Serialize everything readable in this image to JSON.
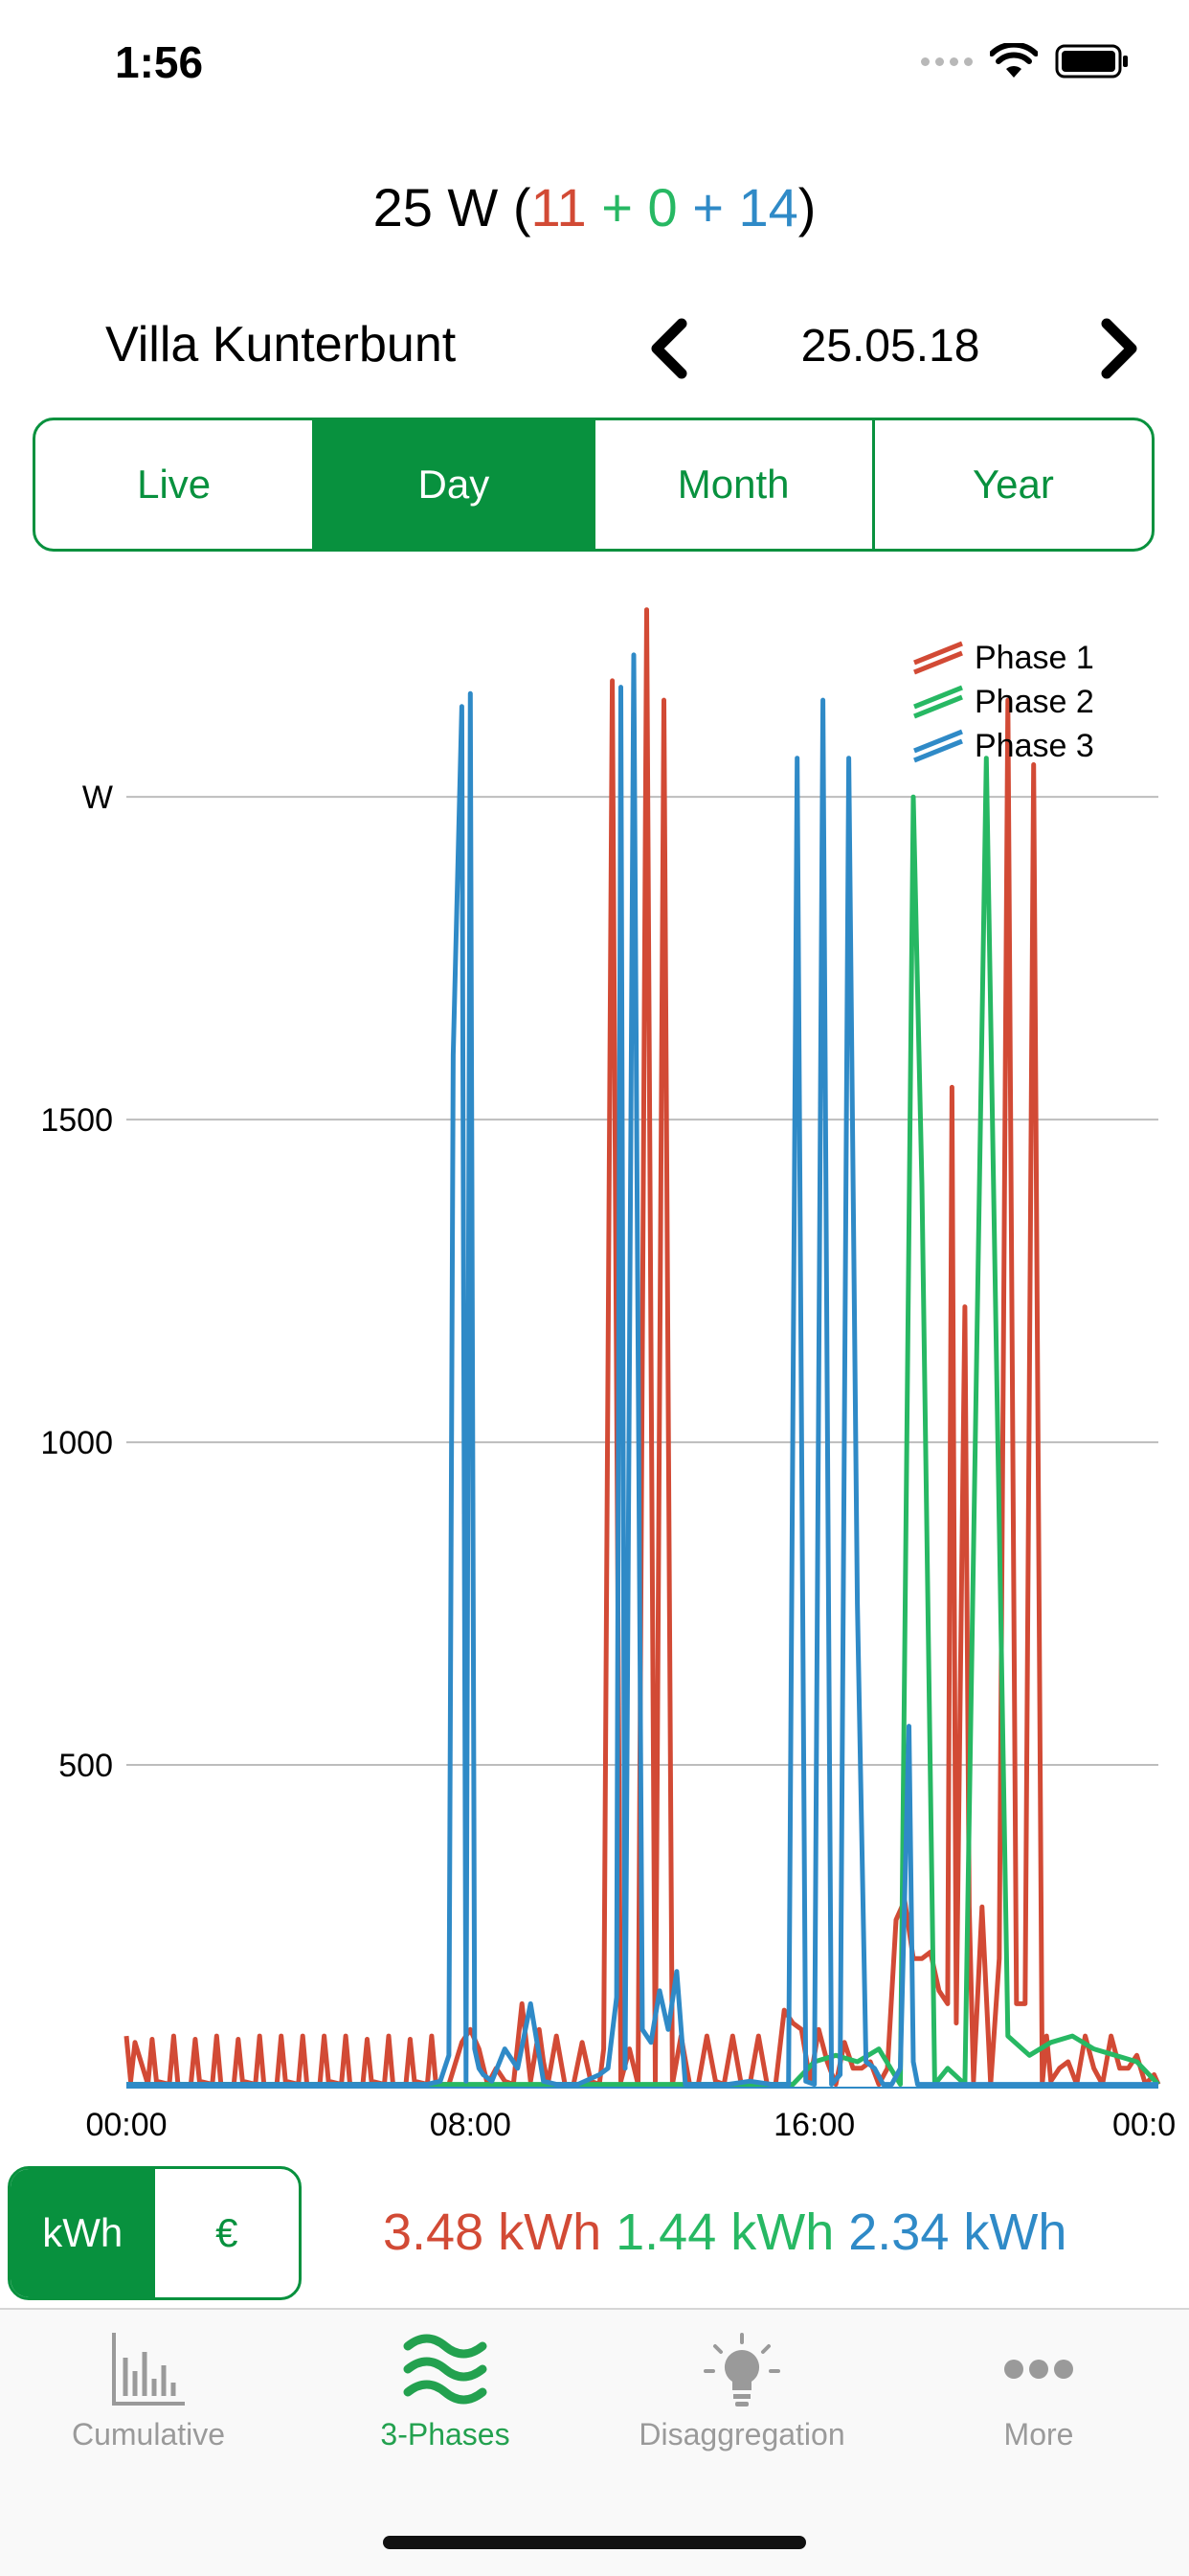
{
  "status_bar": {
    "time": "1:56"
  },
  "power": {
    "total": "25 W",
    "phase1": "11",
    "phase2": "0",
    "phase3": "14",
    "plus": "+",
    "open_paren": "(",
    "close_paren": ")"
  },
  "header": {
    "location": "Villa Kunterbunt",
    "date": "25.05.18"
  },
  "range_tabs": [
    {
      "label": "Live",
      "active": false
    },
    {
      "label": "Day",
      "active": true
    },
    {
      "label": "Month",
      "active": false
    },
    {
      "label": "Year",
      "active": false
    }
  ],
  "unit_toggle": [
    {
      "label": "kWh",
      "active": true
    },
    {
      "label": "€",
      "active": false
    }
  ],
  "totals": {
    "phase1": "3.48 kWh",
    "phase2": "1.44 kWh",
    "phase3": "2.34 kWh"
  },
  "chart_data": {
    "type": "line",
    "ylabel": "W",
    "ylim": [
      0,
      2300
    ],
    "yticks": [
      500,
      1000,
      1500
    ],
    "ytick_labels": [
      "500",
      "1000",
      "1500"
    ],
    "xlim": [
      0,
      24
    ],
    "xticks": [
      0,
      8,
      16,
      24
    ],
    "xtick_labels": [
      "00:00",
      "08:00",
      "16:00",
      "00:0"
    ],
    "legend_position": "top-right",
    "grid": true,
    "colors": {
      "phase1": "#d24a35",
      "phase2": "#27b863",
      "phase3": "#2f8ac7"
    },
    "series": [
      {
        "name": "Phase 1",
        "color": "#d24a35",
        "x": [
          0,
          0.1,
          0.2,
          0.5,
          0.6,
          0.7,
          1.0,
          1.1,
          1.2,
          1.5,
          1.6,
          1.7,
          2.0,
          2.1,
          2.2,
          2.5,
          2.6,
          2.7,
          3.0,
          3.1,
          3.2,
          3.5,
          3.6,
          3.7,
          4.0,
          4.1,
          4.2,
          4.5,
          4.6,
          4.7,
          5.0,
          5.1,
          5.2,
          5.5,
          5.6,
          5.7,
          6.0,
          6.1,
          6.2,
          6.5,
          6.6,
          6.7,
          7.0,
          7.1,
          7.2,
          7.5,
          7.8,
          8.0,
          8.2,
          8.4,
          8.6,
          8.8,
          9.0,
          9.2,
          9.4,
          9.6,
          9.7,
          9.8,
          10.0,
          10.2,
          10.4,
          10.6,
          10.8,
          11.0,
          11.1,
          11.3,
          11.5,
          11.7,
          11.9,
          12.1,
          12.3,
          12.5,
          12.7,
          12.9,
          13.1,
          13.3,
          13.5,
          13.7,
          13.9,
          14.1,
          14.3,
          14.5,
          14.7,
          14.9,
          15.1,
          15.3,
          15.5,
          15.7,
          15.9,
          16.1,
          16.3,
          16.5,
          16.7,
          16.9,
          17.1,
          17.3,
          17.5,
          17.7,
          17.9,
          18.1,
          18.3,
          18.5,
          18.7,
          18.9,
          19.1,
          19.2,
          19.3,
          19.5,
          19.6,
          19.7,
          19.9,
          20.1,
          20.3,
          20.5,
          20.7,
          20.9,
          21.1,
          21.3,
          21.4,
          21.5,
          21.7,
          21.9,
          22.1,
          22.3,
          22.5,
          22.7,
          22.9,
          23.1,
          23.3,
          23.5,
          23.7,
          23.9,
          24
        ],
        "values": [
          80,
          10,
          70,
          5,
          75,
          10,
          5,
          80,
          5,
          5,
          75,
          10,
          5,
          80,
          5,
          5,
          75,
          10,
          5,
          80,
          5,
          5,
          80,
          10,
          5,
          80,
          5,
          5,
          80,
          10,
          5,
          80,
          5,
          5,
          75,
          10,
          5,
          80,
          5,
          5,
          75,
          10,
          5,
          80,
          5,
          5,
          70,
          90,
          60,
          5,
          30,
          10,
          5,
          130,
          10,
          90,
          40,
          5,
          80,
          5,
          5,
          70,
          10,
          5,
          60,
          2180,
          10,
          60,
          5,
          2290,
          10,
          2150,
          5,
          80,
          5,
          5,
          80,
          10,
          5,
          80,
          5,
          5,
          80,
          5,
          5,
          120,
          100,
          90,
          10,
          90,
          40,
          5,
          70,
          30,
          30,
          40,
          5,
          30,
          260,
          290,
          200,
          200,
          210,
          150,
          130,
          1550,
          100,
          1210,
          280,
          10,
          280,
          5,
          200,
          2150,
          130,
          130,
          2050,
          5,
          80,
          10,
          30,
          40,
          5,
          80,
          30,
          5,
          80,
          30,
          30,
          50,
          5,
          20,
          5
        ]
      },
      {
        "name": "Phase 2",
        "color": "#27b863",
        "x": [
          0,
          2,
          4,
          6,
          8,
          10,
          12,
          14,
          15.5,
          16,
          16.5,
          17,
          17.5,
          18,
          18.3,
          18.5,
          18.8,
          19.1,
          19.5,
          20.0,
          20.5,
          21.0,
          21.5,
          22.0,
          22.5,
          23.0,
          23.5,
          24
        ],
        "values": [
          5,
          5,
          5,
          5,
          5,
          5,
          5,
          5,
          5,
          40,
          50,
          40,
          60,
          5,
          2000,
          1400,
          5,
          30,
          5,
          2060,
          80,
          50,
          70,
          80,
          60,
          50,
          40,
          5
        ]
      },
      {
        "name": "Phase 3",
        "color": "#2f8ac7",
        "x": [
          0,
          1,
          2,
          3,
          4,
          5,
          6,
          7,
          7.3,
          7.5,
          7.6,
          7.8,
          7.9,
          8.0,
          8.1,
          8.2,
          8.3,
          8.5,
          8.8,
          9.1,
          9.4,
          9.7,
          10.0,
          10.5,
          11.0,
          11.2,
          11.4,
          11.5,
          11.6,
          11.8,
          12.0,
          12.2,
          12.4,
          12.6,
          12.8,
          13.0,
          13.5,
          14.0,
          14.5,
          15.0,
          15.4,
          15.6,
          15.8,
          16.0,
          16.2,
          16.4,
          16.6,
          16.8,
          17.0,
          17.2,
          17.4,
          17.6,
          17.8,
          18.0,
          18.2,
          18.3,
          18.4,
          18.6,
          19.0,
          19.5,
          20.0,
          21.0,
          22.0,
          23.0,
          24
        ],
        "values": [
          5,
          5,
          5,
          5,
          5,
          5,
          5,
          5,
          10,
          50,
          1600,
          2140,
          10,
          2160,
          60,
          30,
          20,
          10,
          60,
          30,
          130,
          10,
          5,
          5,
          20,
          30,
          140,
          2170,
          30,
          2220,
          90,
          70,
          150,
          90,
          180,
          5,
          5,
          5,
          10,
          5,
          5,
          2060,
          10,
          5,
          2150,
          5,
          20,
          2060,
          750,
          40,
          30,
          5,
          5,
          30,
          560,
          40,
          5,
          5,
          5,
          5,
          5,
          5,
          5,
          5,
          5
        ]
      }
    ]
  }
}
